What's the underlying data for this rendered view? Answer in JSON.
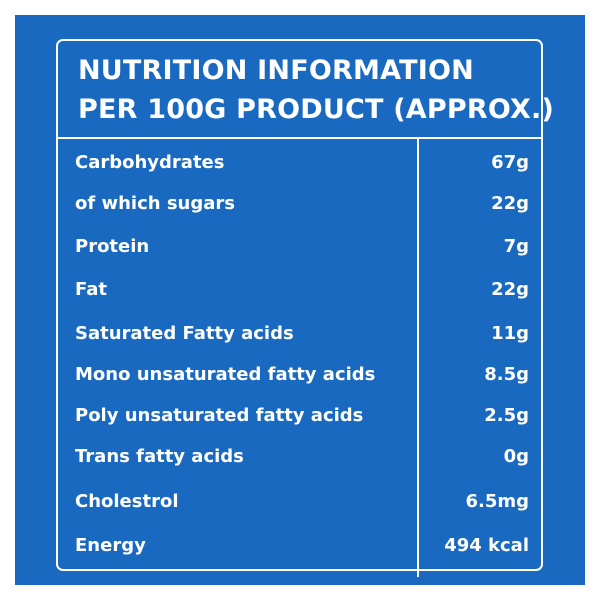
{
  "colors": {
    "background": "#1a69c0",
    "text": "#ffffff",
    "page": "#ffffff"
  },
  "title": {
    "line1": "NUTRITION INFORMATION",
    "line2": "PER 100G PRODUCT (APPROX.)"
  },
  "table": {
    "rows": [
      {
        "label": "Carbohydrates",
        "value": "67g"
      },
      {
        "label": "of which sugars",
        "value": "22g"
      },
      {
        "label": "Protein",
        "value": "7g"
      },
      {
        "label": "Fat",
        "value": "22g"
      },
      {
        "label": "Saturated Fatty acids",
        "value": "11g"
      },
      {
        "label": "Mono unsaturated fatty acids",
        "value": "8.5g"
      },
      {
        "label": "Poly unsaturated fatty acids",
        "value": "2.5g"
      },
      {
        "label": "Trans fatty acids",
        "value": "0g"
      },
      {
        "label": "Cholestrol",
        "value": "6.5mg"
      },
      {
        "label": "Energy",
        "value": "494 kcal"
      }
    ]
  }
}
